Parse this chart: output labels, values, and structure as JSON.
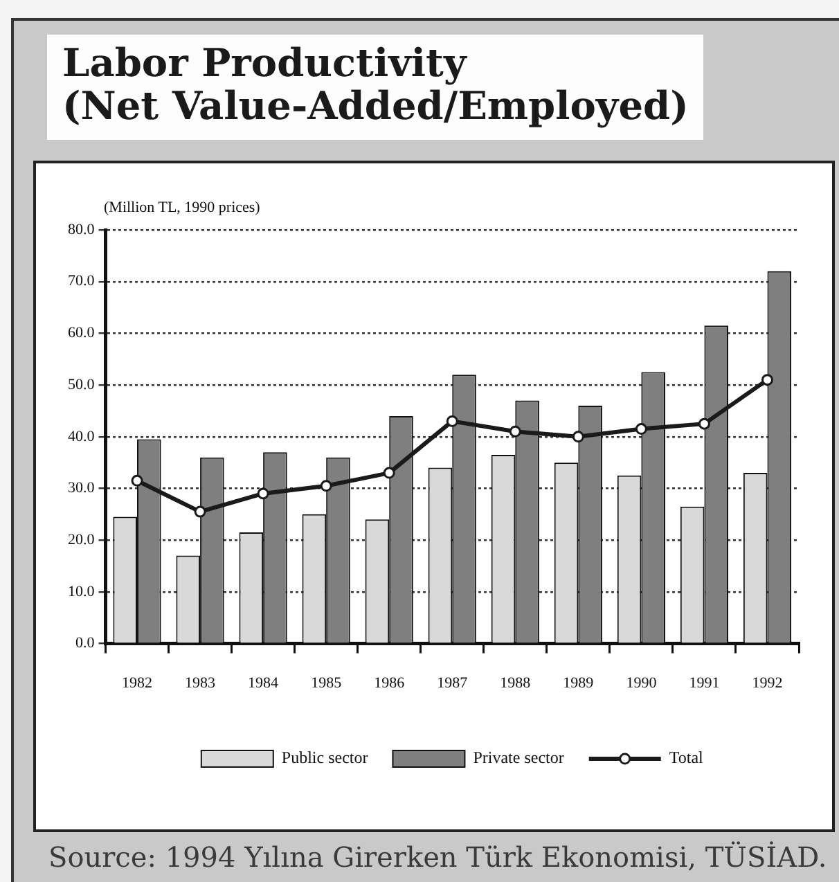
{
  "chart_data": {
    "type": "bar",
    "title": "Labor Productivity",
    "subtitle": "(Net Value-Added/Employed)",
    "ylabel": "(Million TL, 1990 prices)",
    "categories": [
      "1982",
      "1983",
      "1984",
      "1985",
      "1986",
      "1987",
      "1988",
      "1989",
      "1990",
      "1991",
      "1992"
    ],
    "series": [
      {
        "name": "Public sector",
        "color": "#d9d9d9",
        "values": [
          24.5,
          17.0,
          21.5,
          25.0,
          24.0,
          34.0,
          36.5,
          35.0,
          32.5,
          26.5,
          33.0
        ]
      },
      {
        "name": "Private sector",
        "color": "#7f7f7f",
        "values": [
          39.5,
          36.0,
          37.0,
          36.0,
          44.0,
          52.0,
          47.0,
          46.0,
          52.5,
          61.5,
          72.0
        ]
      },
      {
        "name": "Total",
        "type": "line",
        "color": "#1a1a1a",
        "values": [
          31.5,
          25.5,
          29.0,
          30.5,
          33.0,
          43.0,
          41.0,
          40.0,
          41.5,
          42.5,
          51.0
        ]
      }
    ],
    "ylim": [
      0,
      80
    ],
    "yticks": [
      {
        "value": 0,
        "label": "0.0"
      },
      {
        "value": 10,
        "label": "10.0"
      },
      {
        "value": 20,
        "label": "20.0"
      },
      {
        "value": 30,
        "label": "30.0"
      },
      {
        "value": 40,
        "label": "40.0"
      },
      {
        "value": 50,
        "label": "50.0"
      },
      {
        "value": 60,
        "label": "60.0"
      },
      {
        "value": 70,
        "label": "70.0"
      },
      {
        "value": 80,
        "label": "80.0"
      }
    ],
    "grid": "y",
    "legend": "bottom",
    "marker": "circle",
    "annotations": [
      "Source: 1994 Yılına Girerken Türk Ekonomisi, TÜSİAD."
    ]
  }
}
